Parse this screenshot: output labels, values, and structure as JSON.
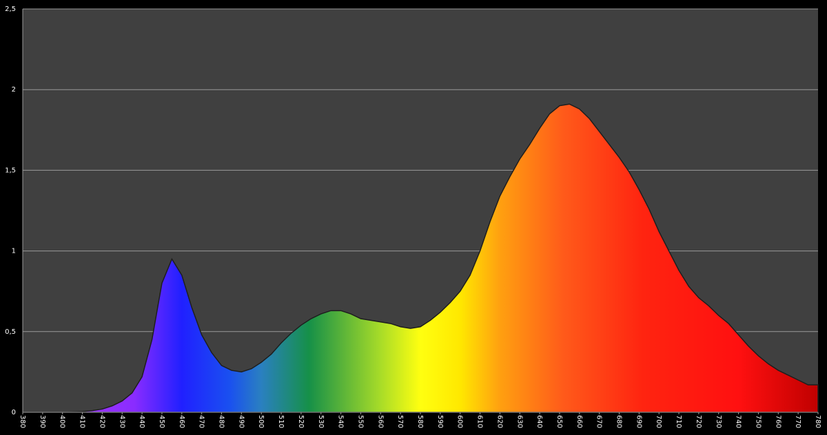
{
  "chart_data": {
    "type": "area",
    "x": [
      380,
      385,
      390,
      395,
      400,
      405,
      410,
      415,
      420,
      425,
      430,
      435,
      440,
      445,
      450,
      455,
      460,
      465,
      470,
      475,
      480,
      485,
      490,
      495,
      500,
      505,
      510,
      515,
      520,
      525,
      530,
      535,
      540,
      545,
      550,
      555,
      560,
      565,
      570,
      575,
      580,
      585,
      590,
      595,
      600,
      605,
      610,
      615,
      620,
      625,
      630,
      635,
      640,
      645,
      650,
      655,
      660,
      665,
      670,
      675,
      680,
      685,
      690,
      695,
      700,
      705,
      710,
      715,
      720,
      725,
      730,
      735,
      740,
      745,
      750,
      755,
      760,
      765,
      770,
      775,
      780
    ],
    "values": [
      0,
      0,
      0,
      0,
      0,
      0.002,
      0.005,
      0.01,
      0.02,
      0.04,
      0.07,
      0.12,
      0.22,
      0.45,
      0.8,
      0.95,
      0.85,
      0.65,
      0.48,
      0.37,
      0.29,
      0.26,
      0.25,
      0.27,
      0.31,
      0.36,
      0.43,
      0.49,
      0.54,
      0.58,
      0.61,
      0.63,
      0.63,
      0.61,
      0.58,
      0.57,
      0.56,
      0.55,
      0.53,
      0.52,
      0.53,
      0.57,
      0.62,
      0.68,
      0.75,
      0.85,
      1.0,
      1.18,
      1.34,
      1.46,
      1.57,
      1.66,
      1.76,
      1.85,
      1.9,
      1.91,
      1.88,
      1.82,
      1.74,
      1.66,
      1.58,
      1.49,
      1.38,
      1.26,
      1.12,
      1.0,
      0.88,
      0.78,
      0.71,
      0.66,
      0.6,
      0.55,
      0.48,
      0.41,
      0.35,
      0.3,
      0.26,
      0.23,
      0.2,
      0.17,
      0.17
    ],
    "xlim": [
      380,
      780
    ],
    "xticks": [
      380,
      390,
      400,
      410,
      420,
      430,
      440,
      450,
      460,
      470,
      480,
      490,
      500,
      510,
      520,
      530,
      540,
      550,
      560,
      570,
      580,
      590,
      600,
      610,
      620,
      630,
      640,
      650,
      660,
      670,
      680,
      690,
      700,
      710,
      720,
      730,
      740,
      750,
      760,
      770,
      780
    ],
    "ylim": [
      0,
      2.5
    ],
    "yticks": [
      0,
      {
        "value": 0.5,
        "label": "0,5"
      },
      1,
      {
        "value": 1.5,
        "label": "1,5"
      },
      2,
      {
        "value": 2.5,
        "label": "2,5"
      }
    ],
    "grid": true
  }
}
